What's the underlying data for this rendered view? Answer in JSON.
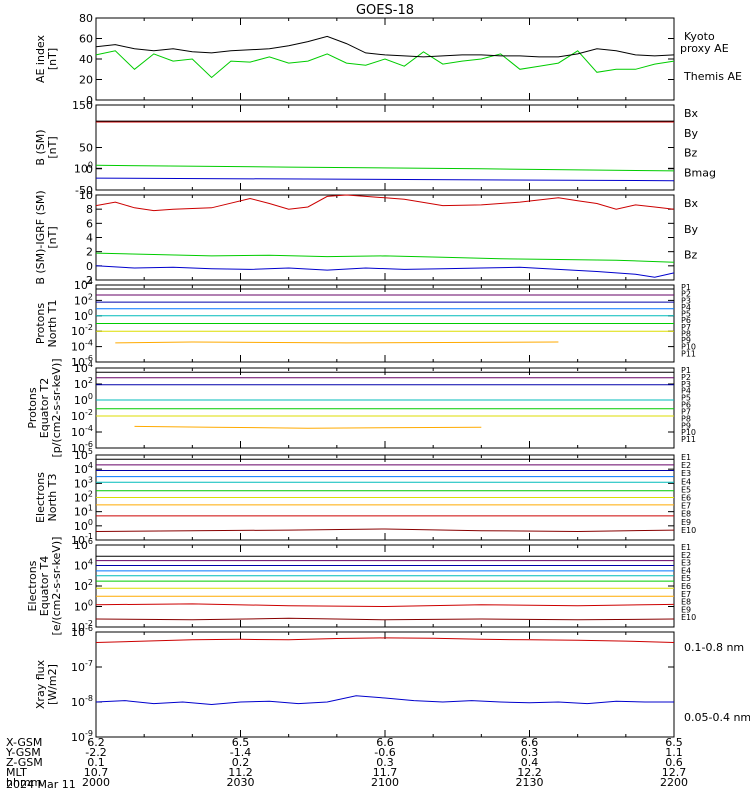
{
  "figure": {
    "title": "GOES-18",
    "date_label": "2024 Mar 11"
  },
  "orbit_table": {
    "row_labels": [
      "X-GSM",
      "Y-GSM",
      "Z-GSM",
      "MLT",
      "hhmm"
    ],
    "columns": [
      [
        "6.2",
        "-2.2",
        "0.1",
        "10.7",
        "2000"
      ],
      [
        "6.5",
        "-1.4",
        "0.2",
        "11.2",
        "2030"
      ],
      [
        "6.6",
        "-0.6",
        "0.3",
        "11.7",
        "2100"
      ],
      [
        "6.6",
        "0.3",
        "0.4",
        "12.2",
        "2130"
      ],
      [
        "6.5",
        "1.1",
        "0.6",
        "12.7",
        "2200"
      ]
    ]
  },
  "chart_data": [
    {
      "type": "line",
      "ylabel": [
        "AE index",
        "[nT]"
      ],
      "ylim": [
        0,
        80
      ],
      "yticks": [
        "0",
        "20",
        "40",
        "60",
        "80"
      ],
      "series": [
        {
          "name": "Kyoto proxy AE",
          "color": "#00cc00",
          "x": [
            0,
            2,
            4,
            6,
            8,
            10,
            12,
            14,
            16,
            18,
            20,
            22,
            24,
            26,
            28,
            30,
            32,
            34,
            36,
            38,
            40,
            42,
            44,
            46,
            48,
            50,
            52,
            54,
            56,
            58,
            60
          ],
          "y": [
            44,
            48,
            30,
            45,
            38,
            40,
            22,
            38,
            37,
            42,
            36,
            38,
            45,
            36,
            34,
            40,
            33,
            47,
            35,
            38,
            40,
            45,
            30,
            33,
            36,
            48,
            27,
            30,
            30,
            35,
            38
          ]
        },
        {
          "name": "Themis AE",
          "color": "#000000",
          "x": [
            0,
            2,
            4,
            6,
            8,
            10,
            12,
            14,
            16,
            18,
            20,
            22,
            24,
            26,
            28,
            30,
            32,
            34,
            36,
            38,
            40,
            42,
            44,
            46,
            48,
            50,
            52,
            54,
            56,
            58,
            60
          ],
          "y": [
            52,
            54,
            50,
            48,
            50,
            47,
            46,
            48,
            49,
            50,
            53,
            57,
            62,
            55,
            46,
            44,
            43,
            42,
            43,
            44,
            44,
            43,
            43,
            42,
            42,
            45,
            50,
            48,
            44,
            43,
            44
          ]
        }
      ]
    },
    {
      "type": "line",
      "ylabel": [
        "B (SM)",
        "[nT]"
      ],
      "ylim": [
        -50,
        150
      ],
      "yticks": [
        "-50",
        "0",
        "50",
        "100",
        "150"
      ],
      "series": [
        {
          "name": "Bx",
          "color": "#0000cc",
          "x": [
            0,
            60
          ],
          "y": [
            -22,
            -28
          ]
        },
        {
          "name": "By",
          "color": "#00cc00",
          "x": [
            0,
            20,
            40,
            60
          ],
          "y": [
            8,
            4,
            0,
            -5
          ]
        },
        {
          "name": "Bz",
          "color": "#cc0000",
          "x": [
            0,
            60
          ],
          "y": [
            110,
            110
          ]
        },
        {
          "name": "Bmag",
          "color": "#000000",
          "x": [
            0,
            60
          ],
          "y": [
            112,
            112
          ]
        }
      ]
    },
    {
      "type": "line",
      "ylabel": [
        "B (SM)-IGRF (SM)",
        "[nT]"
      ],
      "ylim": [
        -2,
        10
      ],
      "yticks": [
        "-2",
        "0",
        "2",
        "4",
        "6",
        "8",
        "10"
      ],
      "series": [
        {
          "name": "Bx",
          "color": "#0000cc",
          "x": [
            0,
            4,
            8,
            12,
            16,
            20,
            24,
            28,
            32,
            36,
            40,
            44,
            48,
            52,
            56,
            58,
            60
          ],
          "y": [
            0,
            -0.3,
            -0.2,
            -0.4,
            -0.5,
            -0.3,
            -0.6,
            -0.3,
            -0.5,
            -0.4,
            -0.3,
            -0.2,
            -0.5,
            -0.8,
            -1.2,
            -1.6,
            -1.0
          ]
        },
        {
          "name": "By",
          "color": "#00cc00",
          "x": [
            0,
            6,
            12,
            18,
            24,
            30,
            36,
            42,
            48,
            54,
            60
          ],
          "y": [
            1.8,
            1.6,
            1.4,
            1.5,
            1.3,
            1.4,
            1.2,
            1.0,
            0.9,
            0.8,
            0.5
          ]
        },
        {
          "name": "Bz",
          "color": "#cc0000",
          "x": [
            0,
            2,
            4,
            6,
            8,
            12,
            16,
            18,
            20,
            22,
            24,
            26,
            28,
            30,
            32,
            36,
            40,
            44,
            48,
            50,
            52,
            54,
            56,
            58,
            60
          ],
          "y": [
            8.5,
            9.0,
            8.2,
            7.8,
            8.0,
            8.2,
            9.5,
            8.8,
            8.0,
            8.3,
            9.8,
            10.0,
            9.8,
            9.6,
            9.4,
            8.5,
            8.6,
            9.0,
            9.6,
            9.2,
            8.8,
            8.0,
            8.6,
            8.3,
            8.0
          ]
        }
      ]
    },
    {
      "type": "line",
      "ylabel": [
        "Protons",
        "North T1"
      ],
      "yscale": "log",
      "ylim": [
        1e-06,
        10000.0
      ],
      "yticks": [
        "10-6",
        "10-4",
        "10-2",
        "100",
        "102",
        "104"
      ],
      "legend": [
        "P1",
        "P2",
        "P3",
        "P4",
        "P5",
        "P6",
        "P7",
        "P8",
        "P9",
        "P10",
        "P11"
      ],
      "series": [
        {
          "name": "P1",
          "color": "#000000",
          "x": [
            0,
            60
          ],
          "y": [
            3000,
            3000
          ]
        },
        {
          "name": "P2",
          "color": "#660066",
          "x": [
            0,
            60
          ],
          "y": [
            500,
            500
          ]
        },
        {
          "name": "P3",
          "color": "#0000aa",
          "x": [
            0,
            60
          ],
          "y": [
            60,
            60
          ]
        },
        {
          "name": "P4",
          "color": "#0077ff",
          "x": [
            0,
            60
          ],
          "y": [
            8,
            8
          ]
        },
        {
          "name": "P5",
          "color": "#00bbbb",
          "x": [
            0,
            60
          ],
          "y": [
            1,
            1
          ]
        },
        {
          "name": "P6",
          "color": "#00cc00",
          "x": [
            0,
            60
          ],
          "y": [
            0.1,
            0.1
          ]
        },
        {
          "name": "P7",
          "color": "#dddd00",
          "x": [
            0,
            60
          ],
          "y": [
            0.01,
            0.01
          ]
        },
        {
          "name": "P8",
          "color": "#ffaa00",
          "x": [
            2,
            10,
            26,
            48
          ],
          "y": [
            0.0003,
            0.0004,
            0.0003,
            0.0004
          ]
        }
      ]
    },
    {
      "type": "line",
      "ylabel": [
        "Protons",
        "Equator T2",
        "[p/(cm2-s-sr-keV)]"
      ],
      "yscale": "log",
      "ylim": [
        1e-06,
        10000.0
      ],
      "yticks": [
        "10-6",
        "10-4",
        "10-2",
        "100",
        "102",
        "104"
      ],
      "legend": [
        "P1",
        "P2",
        "P3",
        "P4",
        "P5",
        "P6",
        "P7",
        "P8",
        "P9",
        "P10",
        "P11"
      ],
      "series": [
        {
          "name": "P1",
          "color": "#000000",
          "x": [
            0,
            60
          ],
          "y": [
            3000,
            3000
          ]
        },
        {
          "name": "P2",
          "color": "#660066",
          "x": [
            0,
            60
          ],
          "y": [
            600,
            600
          ]
        },
        {
          "name": "P3",
          "color": "#0000aa",
          "x": [
            0,
            60
          ],
          "y": [
            80,
            80
          ]
        },
        {
          "name": "P4",
          "color": "#00bbbb",
          "x": [
            0,
            60
          ],
          "y": [
            1,
            1
          ]
        },
        {
          "name": "P5",
          "color": "#00cc00",
          "x": [
            0,
            60
          ],
          "y": [
            0.08,
            0.08
          ]
        },
        {
          "name": "P6",
          "color": "#dddd00",
          "x": [
            0,
            60
          ],
          "y": [
            0.01,
            0.01
          ]
        },
        {
          "name": "P7",
          "color": "#ffaa00",
          "x": [
            4,
            12,
            22,
            40
          ],
          "y": [
            0.0005,
            0.0004,
            0.0003,
            0.0004
          ]
        }
      ]
    },
    {
      "type": "line",
      "ylabel": [
        "Electrons",
        "North T3"
      ],
      "yscale": "log",
      "ylim": [
        0.1,
        100000.0
      ],
      "yticks": [
        "10-1",
        "100",
        "101",
        "102",
        "103",
        "104",
        "105"
      ],
      "legend": [
        "E1",
        "E2",
        "E3",
        "E4",
        "E5",
        "E6",
        "E7",
        "E8",
        "E9",
        "E10"
      ],
      "series": [
        {
          "name": "E1",
          "color": "#000000",
          "x": [
            0,
            60
          ],
          "y": [
            50000,
            50000
          ]
        },
        {
          "name": "E2",
          "color": "#660066",
          "x": [
            0,
            60
          ],
          "y": [
            20000,
            20000
          ]
        },
        {
          "name": "E3",
          "color": "#0000aa",
          "x": [
            0,
            60
          ],
          "y": [
            8000,
            8000
          ]
        },
        {
          "name": "E4",
          "color": "#0077ff",
          "x": [
            0,
            60
          ],
          "y": [
            3000,
            3000
          ]
        },
        {
          "name": "E5",
          "color": "#00bbbb",
          "x": [
            0,
            60
          ],
          "y": [
            1200,
            1200
          ]
        },
        {
          "name": "E6",
          "color": "#00cc00",
          "x": [
            0,
            60
          ],
          "y": [
            300,
            300
          ]
        },
        {
          "name": "E7",
          "color": "#dddd00",
          "x": [
            0,
            60
          ],
          "y": [
            100,
            100
          ]
        },
        {
          "name": "E8",
          "color": "#ffaa00",
          "x": [
            0,
            60
          ],
          "y": [
            30,
            30
          ]
        },
        {
          "name": "E9",
          "color": "#cc0000",
          "x": [
            0,
            60
          ],
          "y": [
            5,
            5
          ]
        },
        {
          "name": "E10",
          "color": "#880000",
          "x": [
            0,
            10,
            20,
            30,
            40,
            50,
            60
          ],
          "y": [
            0.4,
            0.45,
            0.5,
            0.6,
            0.45,
            0.4,
            0.5
          ]
        }
      ]
    },
    {
      "type": "line",
      "ylabel": [
        "Electrons",
        "Equator T4",
        "[e/(cm2-s-sr-keV)]"
      ],
      "yscale": "log",
      "ylim": [
        0.01,
        1000000.0
      ],
      "yticks": [
        "10-2",
        "100",
        "102",
        "104",
        "106"
      ],
      "legend": [
        "E1",
        "E2",
        "E3",
        "E4",
        "E5",
        "E6",
        "E7",
        "E8",
        "E9",
        "E10"
      ],
      "series": [
        {
          "name": "E1",
          "color": "#000000",
          "x": [
            0,
            60
          ],
          "y": [
            80000,
            80000
          ]
        },
        {
          "name": "E2",
          "color": "#660066",
          "x": [
            0,
            60
          ],
          "y": [
            30000,
            30000
          ]
        },
        {
          "name": "E3",
          "color": "#0000aa",
          "x": [
            0,
            60
          ],
          "y": [
            10000,
            10000
          ]
        },
        {
          "name": "E4",
          "color": "#0077ff",
          "x": [
            0,
            60
          ],
          "y": [
            3000,
            3000
          ]
        },
        {
          "name": "E5",
          "color": "#00bbbb",
          "x": [
            0,
            60
          ],
          "y": [
            1000,
            1000
          ]
        },
        {
          "name": "E6",
          "color": "#00cc00",
          "x": [
            0,
            60
          ],
          "y": [
            300,
            300
          ]
        },
        {
          "name": "E7",
          "color": "#dddd00",
          "x": [
            0,
            60
          ],
          "y": [
            60,
            60
          ]
        },
        {
          "name": "E8",
          "color": "#ffaa00",
          "x": [
            0,
            60
          ],
          "y": [
            10,
            10
          ]
        },
        {
          "name": "E9",
          "color": "#cc0000",
          "x": [
            0,
            10,
            20,
            30,
            40,
            50,
            60
          ],
          "y": [
            1.5,
            1.8,
            1.2,
            1.0,
            1.5,
            1.2,
            1.6
          ]
        },
        {
          "name": "E10",
          "color": "#880000",
          "x": [
            0,
            10,
            20,
            30,
            40,
            50,
            60
          ],
          "y": [
            0.06,
            0.05,
            0.07,
            0.05,
            0.06,
            0.05,
            0.06
          ]
        }
      ]
    },
    {
      "type": "line",
      "ylabel": [
        "Xray flux",
        "[W/m2]"
      ],
      "yscale": "log",
      "ylim": [
        1e-09,
        1e-06
      ],
      "yticks": [
        "10-9",
        "10-8",
        "10-7",
        "10-6"
      ],
      "series": [
        {
          "name": "0.1-0.8 nm",
          "color": "#cc0000",
          "x": [
            0,
            5,
            10,
            15,
            20,
            25,
            30,
            35,
            40,
            45,
            50,
            55,
            60
          ],
          "y": [
            5e-07,
            5.5e-07,
            6e-07,
            6.2e-07,
            6e-07,
            6.5e-07,
            6.8e-07,
            6.6e-07,
            6.2e-07,
            6e-07,
            5.8e-07,
            5.5e-07,
            5e-07
          ]
        },
        {
          "name": "0.05-0.4 nm",
          "color": "#0000cc",
          "x": [
            0,
            3,
            6,
            9,
            12,
            15,
            18,
            21,
            24,
            27,
            30,
            33,
            36,
            39,
            42,
            45,
            48,
            51,
            54,
            57,
            60
          ],
          "y": [
            1e-08,
            1.1e-08,
            9e-09,
            1e-08,
            8.5e-09,
            1e-08,
            1.05e-08,
            9e-09,
            1e-08,
            1.5e-08,
            1.3e-08,
            1.1e-08,
            1e-08,
            1.1e-08,
            1e-08,
            9.5e-09,
            1e-08,
            9e-09,
            1.05e-08,
            1e-08,
            1e-08
          ]
        }
      ]
    }
  ]
}
